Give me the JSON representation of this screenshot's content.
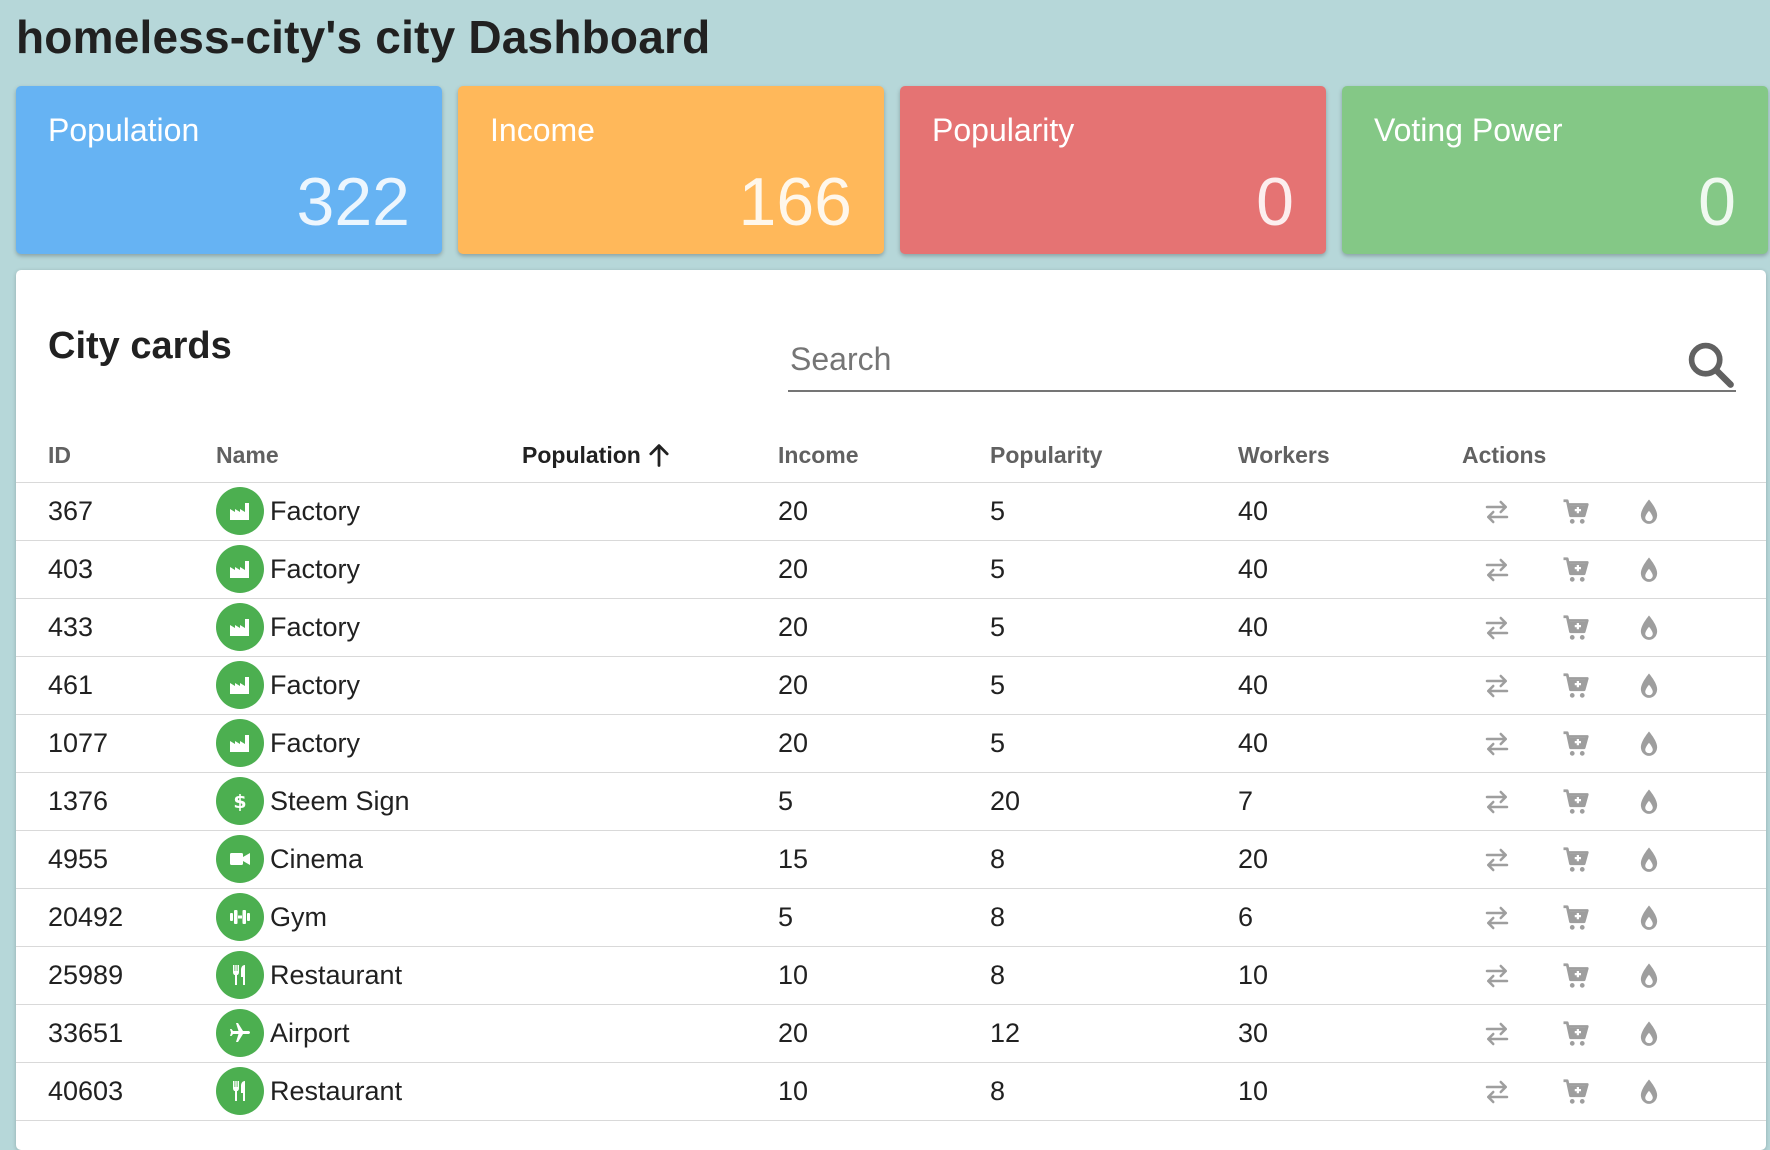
{
  "title": "homeless-city's city Dashboard",
  "stats": [
    {
      "label": "Population",
      "value": "322",
      "color": "#66b3f3"
    },
    {
      "label": "Income",
      "value": "166",
      "color": "#ffb85a"
    },
    {
      "label": "Popularity",
      "value": "0",
      "color": "#e57373"
    },
    {
      "label": "Voting Power",
      "value": "0",
      "color": "#84c886"
    }
  ],
  "panel": {
    "title": "City cards",
    "search_placeholder": "Search"
  },
  "table": {
    "columns": [
      "ID",
      "Name",
      "Population",
      "Income",
      "Popularity",
      "Workers",
      "Actions"
    ],
    "sorted_column": "Population",
    "rows": [
      {
        "id": "367",
        "name": "Factory",
        "icon": "factory-icon",
        "population": "",
        "income": "20",
        "popularity": "5",
        "workers": "40"
      },
      {
        "id": "403",
        "name": "Factory",
        "icon": "factory-icon",
        "population": "",
        "income": "20",
        "popularity": "5",
        "workers": "40"
      },
      {
        "id": "433",
        "name": "Factory",
        "icon": "factory-icon",
        "population": "",
        "income": "20",
        "popularity": "5",
        "workers": "40"
      },
      {
        "id": "461",
        "name": "Factory",
        "icon": "factory-icon",
        "population": "",
        "income": "20",
        "popularity": "5",
        "workers": "40"
      },
      {
        "id": "1077",
        "name": "Factory",
        "icon": "factory-icon",
        "population": "",
        "income": "20",
        "popularity": "5",
        "workers": "40"
      },
      {
        "id": "1376",
        "name": "Steem Sign",
        "icon": "dollar-icon",
        "population": "",
        "income": "5",
        "popularity": "20",
        "workers": "7"
      },
      {
        "id": "4955",
        "name": "Cinema",
        "icon": "video-camera-icon",
        "population": "",
        "income": "15",
        "popularity": "8",
        "workers": "20"
      },
      {
        "id": "20492",
        "name": "Gym",
        "icon": "dumbbell-icon",
        "population": "",
        "income": "5",
        "popularity": "8",
        "workers": "6"
      },
      {
        "id": "25989",
        "name": "Restaurant",
        "icon": "fork-knife-icon",
        "population": "",
        "income": "10",
        "popularity": "8",
        "workers": "10"
      },
      {
        "id": "33651",
        "name": "Airport",
        "icon": "airplane-icon",
        "population": "",
        "income": "20",
        "popularity": "12",
        "workers": "30"
      },
      {
        "id": "40603",
        "name": "Restaurant",
        "icon": "fork-knife-icon",
        "population": "",
        "income": "10",
        "popularity": "8",
        "workers": "10"
      }
    ]
  },
  "actions": [
    "transfer-icon",
    "cart-icon",
    "burn-icon"
  ],
  "colors": {
    "accent_green": "#4caf50",
    "action_gray": "#9e9e9e",
    "background": "#b6d7d9"
  }
}
